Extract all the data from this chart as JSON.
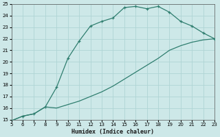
{
  "x_curve1": [
    5,
    6,
    7,
    8,
    9,
    10,
    11,
    12,
    13,
    14,
    15,
    16,
    17,
    18,
    19,
    20,
    21,
    22,
    23
  ],
  "y_curve1": [
    14.9,
    15.3,
    15.5,
    16.1,
    17.8,
    20.3,
    21.8,
    23.1,
    23.5,
    23.8,
    24.7,
    24.8,
    24.6,
    24.8,
    24.3,
    23.5,
    23.1,
    22.5,
    22.0
  ],
  "x_curve2": [
    5,
    6,
    7,
    8,
    9,
    10,
    11,
    12,
    13,
    14,
    15,
    16,
    17,
    18,
    19,
    20,
    21,
    22,
    23
  ],
  "y_curve2": [
    14.9,
    15.3,
    15.5,
    16.1,
    16.0,
    16.3,
    16.6,
    17.0,
    17.4,
    17.9,
    18.5,
    19.1,
    19.7,
    20.3,
    21.0,
    21.4,
    21.7,
    21.9,
    22.0
  ],
  "color": "#2e7d6e",
  "bg_color": "#cde8e8",
  "grid_color": "#afd4d4",
  "xlabel": "Humidex (Indice chaleur)",
  "xlim": [
    5,
    23
  ],
  "ylim": [
    15,
    25
  ],
  "xticks": [
    5,
    6,
    7,
    8,
    9,
    10,
    11,
    12,
    13,
    14,
    15,
    16,
    17,
    18,
    19,
    20,
    21,
    22,
    23
  ],
  "yticks": [
    15,
    16,
    17,
    18,
    19,
    20,
    21,
    22,
    23,
    24,
    25
  ]
}
